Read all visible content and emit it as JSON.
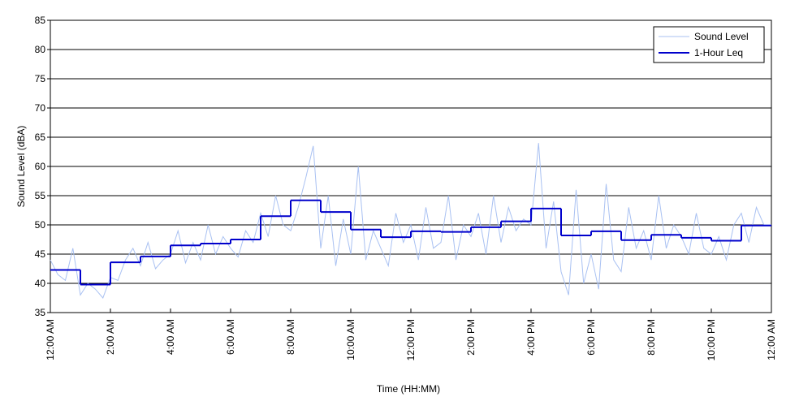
{
  "chart_data": {
    "type": "line",
    "xlabel": "Time (HH:MM)",
    "ylabel": "Sound Level (dBA)",
    "xlim": [
      0,
      24
    ],
    "ylim": [
      35,
      85
    ],
    "xticks": [
      {
        "value": 0,
        "label": "12:00 AM"
      },
      {
        "value": 2,
        "label": "2:00 AM"
      },
      {
        "value": 4,
        "label": "4:00 AM"
      },
      {
        "value": 6,
        "label": "6:00 AM"
      },
      {
        "value": 8,
        "label": "8:00 AM"
      },
      {
        "value": 10,
        "label": "10:00 AM"
      },
      {
        "value": 12,
        "label": "12:00 PM"
      },
      {
        "value": 14,
        "label": "2:00 PM"
      },
      {
        "value": 16,
        "label": "4:00 PM"
      },
      {
        "value": 18,
        "label": "6:00 PM"
      },
      {
        "value": 20,
        "label": "8:00 PM"
      },
      {
        "value": 22,
        "label": "10:00 PM"
      },
      {
        "value": 24,
        "label": "12:00 AM"
      }
    ],
    "yticks": [
      35,
      40,
      45,
      50,
      55,
      60,
      65,
      70,
      75,
      80,
      85
    ],
    "grid": true,
    "legend": "upper right",
    "series": [
      {
        "name": "Sound Level",
        "color": "#a9c1f2",
        "style": "line",
        "x": [
          0,
          0.25,
          0.5,
          0.75,
          1,
          1.25,
          1.5,
          1.75,
          2,
          2.25,
          2.5,
          2.75,
          3,
          3.25,
          3.5,
          3.75,
          4,
          4.25,
          4.5,
          4.75,
          5,
          5.25,
          5.5,
          5.75,
          6,
          6.25,
          6.5,
          6.75,
          7,
          7.25,
          7.5,
          7.75,
          8,
          8.25,
          8.5,
          8.75,
          9,
          9.25,
          9.5,
          9.75,
          10,
          10.25,
          10.5,
          10.75,
          11,
          11.25,
          11.5,
          11.75,
          12,
          12.25,
          12.5,
          12.75,
          13,
          13.25,
          13.5,
          13.75,
          14,
          14.25,
          14.5,
          14.75,
          15,
          15.25,
          15.5,
          15.75,
          16,
          16.25,
          16.5,
          16.75,
          17,
          17.25,
          17.5,
          17.75,
          18,
          18.25,
          18.5,
          18.75,
          19,
          19.25,
          19.5,
          19.75,
          20,
          20.25,
          20.5,
          20.75,
          21,
          21.25,
          21.5,
          21.75,
          22,
          22.25,
          22.5,
          22.75,
          23,
          23.25,
          23.5,
          23.75,
          24
        ],
        "values": [
          44,
          41.5,
          40.5,
          46,
          38,
          40,
          39,
          37.5,
          41,
          40.5,
          44,
          46,
          43,
          47,
          42.5,
          44,
          45,
          49,
          43.5,
          47,
          44,
          50,
          45,
          48,
          46,
          44.5,
          49,
          47,
          52,
          48,
          55,
          50,
          49,
          53,
          58,
          63.5,
          46,
          55,
          43,
          51,
          45,
          60,
          44,
          49,
          46,
          43,
          52,
          47,
          50,
          44,
          53,
          46,
          47,
          55,
          44,
          50,
          48,
          52,
          45,
          55,
          47,
          53,
          49,
          51,
          50,
          64,
          46,
          54,
          42,
          38,
          56,
          40,
          45,
          39,
          57,
          44,
          42,
          53,
          46,
          49,
          44,
          55,
          46,
          50,
          48,
          45,
          52,
          46,
          45,
          48,
          44,
          50,
          52,
          47,
          53,
          50,
          50
        ]
      },
      {
        "name": "1-Hour Leq",
        "color": "#0000cc",
        "style": "step",
        "x": [
          0,
          1,
          2,
          3,
          4,
          5,
          6,
          7,
          8,
          9,
          10,
          11,
          12,
          13,
          14,
          15,
          16,
          17,
          18,
          19,
          20,
          21,
          22,
          23
        ],
        "values": [
          42.3,
          39.8,
          43.6,
          44.6,
          46.5,
          46.8,
          47.5,
          51.5,
          54.2,
          52.2,
          49.2,
          47.9,
          48.9,
          48.8,
          49.6,
          50.6,
          52.8,
          48.2,
          48.9,
          47.4,
          48.3,
          47.8,
          47.3,
          49.9
        ]
      }
    ]
  }
}
